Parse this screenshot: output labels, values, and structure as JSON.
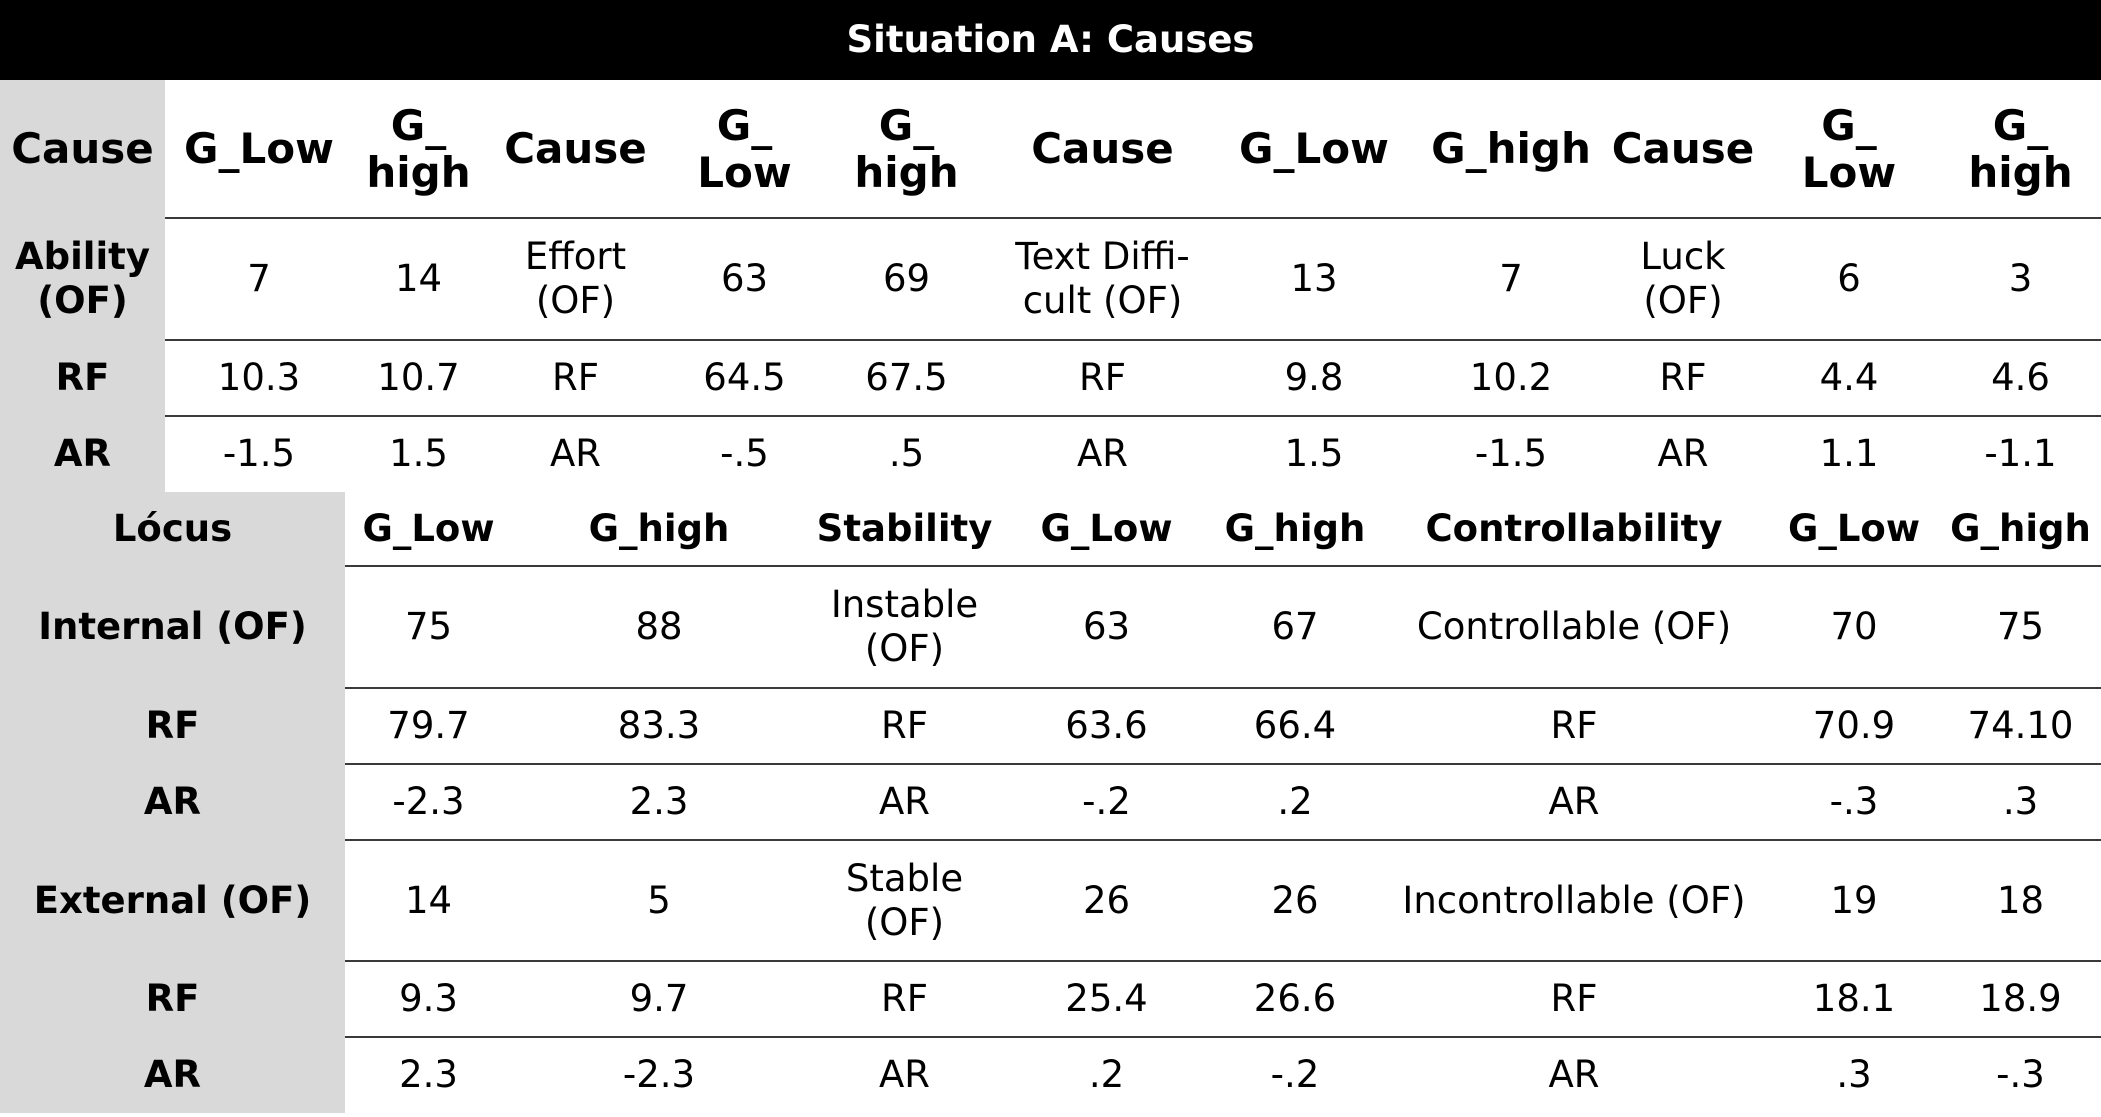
{
  "title": "Situation A: Causes",
  "table_causes": {
    "header": [
      "Cause",
      "G_Low",
      "G_\nhigh",
      "Cause",
      "G_\nLow",
      "G_\nhigh",
      "Cause",
      "G_Low",
      "G_high",
      "Cause",
      "G_\nLow",
      "G_\nhigh"
    ],
    "rows": [
      [
        "Ability\n(OF)",
        "7",
        "14",
        "Effort\n(OF)",
        "63",
        "69",
        "Text Diffi-\ncult (OF)",
        "13",
        "7",
        "Luck\n(OF)",
        "6",
        "3"
      ],
      [
        "RF",
        "10.3",
        "10.7",
        "RF",
        "64.5",
        "67.5",
        "RF",
        "9.8",
        "10.2",
        "RF",
        "4.4",
        "4.6"
      ],
      [
        "AR",
        "-1.5",
        "1.5",
        "AR",
        "-.5",
        ".5",
        "AR",
        "1.5",
        "-1.5",
        "AR",
        "1.1",
        "-1.1"
      ]
    ]
  },
  "table_dimensions": {
    "header": [
      "Lócus",
      "G_Low",
      "G_high",
      "Stability",
      "G_Low",
      "G_high",
      "Controllability",
      "G_Low",
      "G_high"
    ],
    "rows": [
      [
        "Internal (OF)",
        "75",
        "88",
        "Instable\n(OF)",
        "63",
        "67",
        "Controllable (OF)",
        "70",
        "75"
      ],
      [
        "RF",
        "79.7",
        "83.3",
        "RF",
        "63.6",
        "66.4",
        "RF",
        "70.9",
        "74.10"
      ],
      [
        "AR",
        "-2.3",
        "2.3",
        "AR",
        "-.2",
        ".2",
        "AR",
        "-.3",
        ".3"
      ],
      [
        "External (OF)",
        "14",
        "5",
        "Stable\n(OF)",
        "26",
        "26",
        "Incontrollable (OF)",
        "19",
        "18"
      ],
      [
        "RF",
        "9.3",
        "9.7",
        "RF",
        "25.4",
        "26.6",
        "RF",
        "18.1",
        "18.9"
      ],
      [
        "AR",
        "2.3",
        "-2.3",
        "AR",
        ".2",
        "-.2",
        "AR",
        ".3",
        "-.3"
      ]
    ]
  }
}
